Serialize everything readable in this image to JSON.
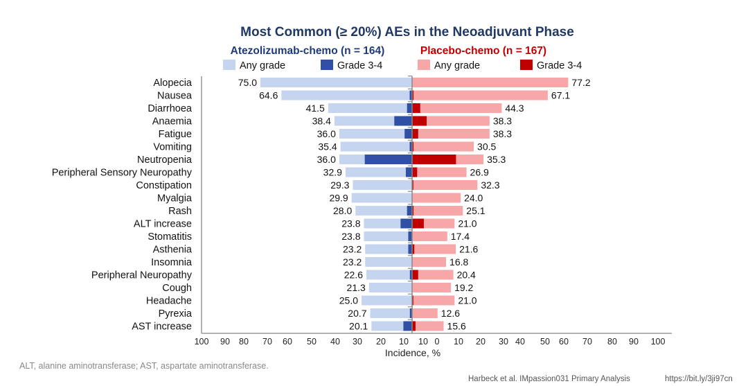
{
  "chart_data": {
    "type": "bar",
    "orientation": "horizontal-butterfly",
    "title": "Most Common (≥ 20%) AEs in the Neoadjuvant Phase",
    "xlabel": "Incidence, %",
    "xlim": [
      0,
      100
    ],
    "x_tick_labels": [
      "100",
      "90",
      "80",
      "70",
      "60",
      "50",
      "40",
      "30",
      "20",
      "10",
      "10",
      "0",
      "10",
      "20",
      "30",
      "40",
      "50",
      "60",
      "70",
      "80",
      "90",
      "100"
    ],
    "groups": [
      {
        "name": "Atezolizumab-chemo (n = 164)",
        "side": "left",
        "color": "#1f3a7a"
      },
      {
        "name": "Placebo-chemo (n = 167)",
        "side": "right",
        "color": "#c00000"
      }
    ],
    "legend": [
      {
        "label": "Any grade",
        "color": "#c5d5ef"
      },
      {
        "label": "Grade 3-4",
        "color": "#2f50a3"
      },
      {
        "label": "Any grade",
        "color": "#f7a7a7"
      },
      {
        "label": "Grade 3-4",
        "color": "#c00000"
      }
    ],
    "categories": [
      "Alopecia",
      "Nausea",
      "Diarrhoea",
      "Anaemia",
      "Fatigue",
      "Vomiting",
      "Neutropenia",
      "Peripheral Sensory Neuropathy",
      "Constipation",
      "Myalgia",
      "Rash",
      "ALT increase",
      "Stomatitis",
      "Asthenia",
      "Insomnia",
      "Peripheral Neuropathy",
      "Cough",
      "Headache",
      "Pyrexia",
      "AST increase"
    ],
    "series": [
      {
        "name": "Atezolizumab-chemo Any grade",
        "values": [
          75.0,
          64.6,
          41.5,
          38.4,
          36.0,
          35.4,
          36.0,
          32.9,
          29.3,
          29.9,
          28.0,
          23.8,
          23.8,
          23.2,
          23.2,
          22.6,
          21.3,
          25.0,
          20.7,
          20.1
        ]
      },
      {
        "name": "Atezolizumab-chemo Grade 3-4",
        "values": [
          0,
          1.2,
          2.5,
          8.8,
          3.7,
          1.2,
          23.4,
          3.1,
          0,
          0,
          2.5,
          5.7,
          1.9,
          1.9,
          0,
          1.1,
          0,
          0,
          1.1,
          4.3
        ]
      },
      {
        "name": "Placebo-chemo Any grade",
        "values": [
          77.2,
          67.1,
          44.3,
          38.3,
          38.3,
          30.5,
          35.3,
          26.9,
          32.3,
          24.0,
          25.1,
          21.0,
          17.4,
          21.6,
          16.8,
          20.4,
          19.2,
          21.0,
          12.6,
          15.6
        ]
      },
      {
        "name": "Placebo-chemo Grade 3-4",
        "values": [
          0,
          0.7,
          4.0,
          7.2,
          3.0,
          0.7,
          21.7,
          2.5,
          0.6,
          0,
          0.7,
          5.8,
          0,
          1.1,
          0,
          3.0,
          0,
          0.6,
          0,
          1.7
        ]
      }
    ]
  },
  "footnote": "ALT, alanine aminotransferase; AST, aspartate aminotransferase.",
  "source": "Harbeck et al. IMpassion031 Primary Analysis",
  "link": "https://bit.ly/3ji97cn"
}
